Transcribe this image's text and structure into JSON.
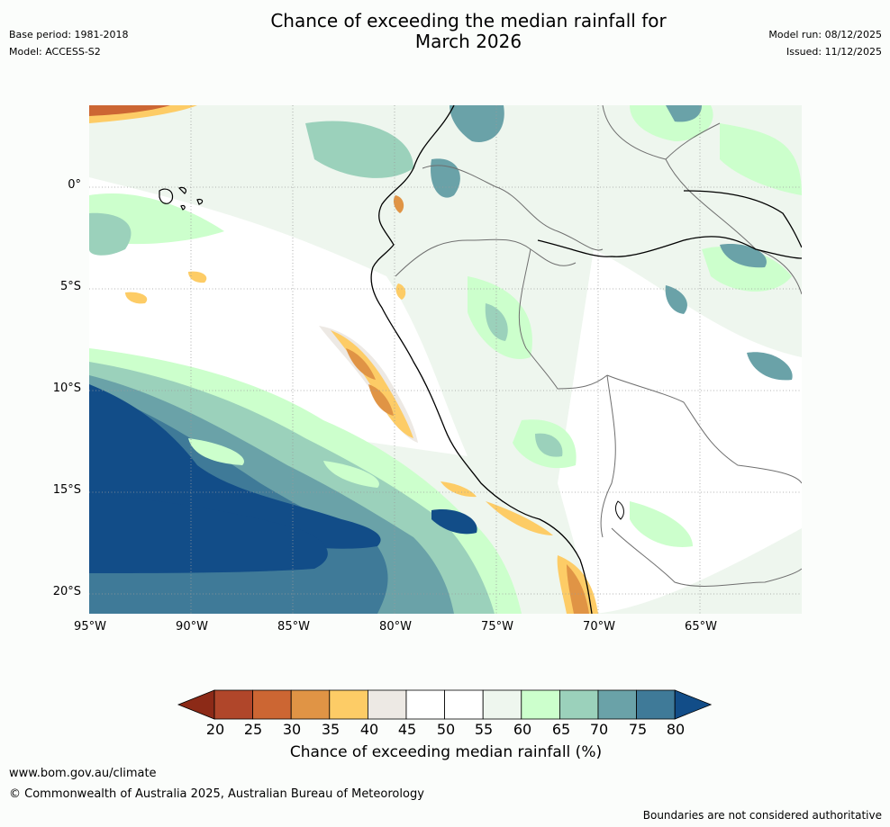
{
  "header": {
    "base_period": "Base period: 1981-2018",
    "model": "Model: ACCESS-S2",
    "title_line1": "Chance of exceeding the median rainfall for",
    "title_line2": "March 2026",
    "model_run": "Model run: 08/12/2025",
    "issued": "Issued: 11/12/2025"
  },
  "axes": {
    "lat_ticks": [
      "0°",
      "5°S",
      "10°S",
      "15°S",
      "20°S"
    ],
    "lon_ticks": [
      "95°W",
      "90°W",
      "85°W",
      "80°W",
      "75°W",
      "70°W",
      "65°W"
    ]
  },
  "colorbar": {
    "labels": [
      "20",
      "25",
      "30",
      "35",
      "40",
      "45",
      "50",
      "55",
      "60",
      "65",
      "70",
      "75",
      "80"
    ],
    "colors": [
      "#8c2a17",
      "#b0462a",
      "#cc6633",
      "#e09445",
      "#fdcc66",
      "#ede9e4",
      "#ffffff",
      "#ffffff",
      "#eef6ee",
      "#ccffcc",
      "#9bd1bb",
      "#6aa2a8",
      "#3f7a98",
      "#124d88"
    ],
    "title": "Chance of exceeding median rainfall (%)"
  },
  "footer": {
    "url": "www.bom.gov.au/climate",
    "copyright": "© Commonwealth of Australia 2025, Australian Bureau of Meteorology",
    "disclaimer": "Boundaries are not considered authoritative"
  }
}
